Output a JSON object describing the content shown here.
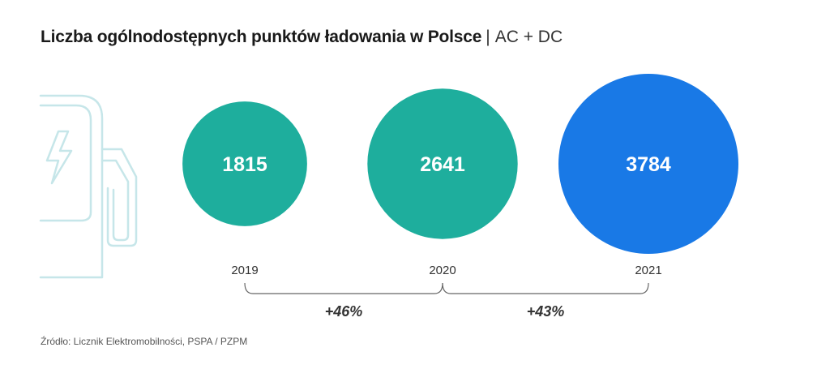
{
  "header": {
    "title": "Liczba ogólnodostępnych punktów ładowania w Polsce",
    "separator": "|",
    "subtitle": "AC + DC"
  },
  "chart_data": {
    "type": "bubble",
    "categories": [
      "2019",
      "2020",
      "2021"
    ],
    "values": [
      1815,
      2641,
      3784
    ],
    "value_labels": [
      "1815",
      "2641",
      "3784"
    ],
    "colors": [
      "#1eae9d",
      "#1eae9d",
      "#1979e6"
    ],
    "growth": [
      {
        "from": "2019",
        "to": "2020",
        "label": "+46%"
      },
      {
        "from": "2020",
        "to": "2021",
        "label": "+43%"
      }
    ]
  },
  "colors": {
    "teal": "#1eae9d",
    "blue": "#1979e6",
    "icon_outline": "#c6e6e9",
    "bracket": "#666666"
  },
  "icons": [
    "ev-charger-icon",
    "lightning-bolt-icon"
  ],
  "footer": {
    "source": "Źródło: Licznik Elektromobilności, PSPA / PZPM"
  }
}
